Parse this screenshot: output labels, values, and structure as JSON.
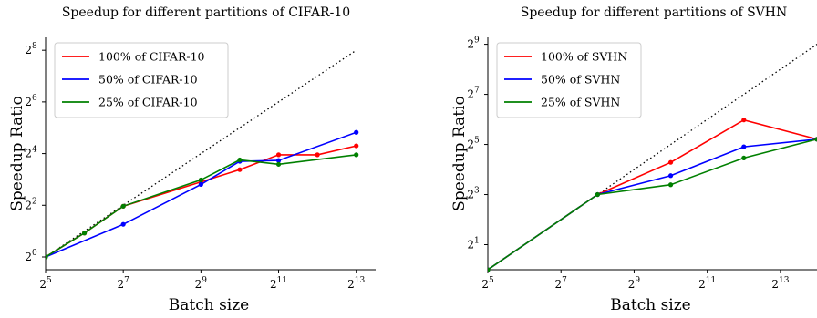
{
  "chart_data": [
    {
      "type": "line",
      "title": "Speedup for different partitions of CIFAR-10",
      "xlabel": "Batch size",
      "ylabel": "Speedup Ratio",
      "x_scale": "log2",
      "y_scale": "log2",
      "xlim": [
        32,
        11585
      ],
      "ylim": [
        0.71,
        362
      ],
      "x_ticks": [
        {
          "value": 32,
          "base": "2",
          "exp": "5"
        },
        {
          "value": 128,
          "base": "2",
          "exp": "7"
        },
        {
          "value": 512,
          "base": "2",
          "exp": "9"
        },
        {
          "value": 2048,
          "base": "2",
          "exp": "11"
        },
        {
          "value": 8192,
          "base": "2",
          "exp": "13"
        }
      ],
      "y_ticks": [
        {
          "value": 1,
          "base": "2",
          "exp": "0"
        },
        {
          "value": 4,
          "base": "2",
          "exp": "2"
        },
        {
          "value": 16,
          "base": "2",
          "exp": "4"
        },
        {
          "value": 64,
          "base": "2",
          "exp": "6"
        },
        {
          "value": 256,
          "base": "2",
          "exp": "8"
        }
      ],
      "legend_position": "top-left",
      "reference": {
        "style": "dotted",
        "color": "#000000",
        "x": [
          32,
          8192
        ],
        "y": [
          1,
          256
        ]
      },
      "series": [
        {
          "name": "100% of CIFAR-10",
          "color": "#ff0000",
          "x": [
            32,
            64,
            128,
            512,
            1024,
            2048,
            4096,
            8192
          ],
          "y": [
            1,
            1.9,
            3.9,
            7.5,
            10.4,
            15.5,
            15.5,
            19.7
          ]
        },
        {
          "name": "50% of CIFAR-10",
          "color": "#0000ff",
          "x": [
            32,
            128,
            512,
            1024,
            2048,
            8192
          ],
          "y": [
            1,
            2.4,
            7.0,
            13.0,
            13.3,
            28.3
          ]
        },
        {
          "name": "25% of CIFAR-10",
          "color": "#008000",
          "x": [
            32,
            64,
            128,
            512,
            1024,
            2048,
            8192
          ],
          "y": [
            1,
            1.9,
            3.9,
            7.9,
            13.5,
            12.0,
            15.5
          ]
        }
      ]
    },
    {
      "type": "line",
      "title": "Speedup for different partitions of SVHN",
      "xlabel": "Batch size",
      "ylabel": "Speedup Ratio",
      "x_scale": "log2",
      "y_scale": "log2",
      "xlim": [
        32,
        16384
      ],
      "ylim": [
        1,
        620
      ],
      "x_ticks": [
        {
          "value": 32,
          "base": "2",
          "exp": "5"
        },
        {
          "value": 128,
          "base": "2",
          "exp": "7"
        },
        {
          "value": 512,
          "base": "2",
          "exp": "9"
        },
        {
          "value": 2048,
          "base": "2",
          "exp": "11"
        },
        {
          "value": 8192,
          "base": "2",
          "exp": "13"
        }
      ],
      "y_ticks": [
        {
          "value": 2,
          "base": "2",
          "exp": "1"
        },
        {
          "value": 8,
          "base": "2",
          "exp": "3"
        },
        {
          "value": 32,
          "base": "2",
          "exp": "5"
        },
        {
          "value": 128,
          "base": "2",
          "exp": "7"
        },
        {
          "value": 512,
          "base": "2",
          "exp": "9"
        }
      ],
      "legend_position": "top-left",
      "reference": {
        "style": "dotted",
        "color": "#000000",
        "x": [
          32,
          16384
        ],
        "y": [
          1,
          512
        ]
      },
      "series": [
        {
          "name": "100% of SVHN",
          "color": "#ff0000",
          "x": [
            32,
            256,
            1024,
            4096,
            16384
          ],
          "y": [
            1,
            8,
            19.5,
            63,
            37
          ]
        },
        {
          "name": "50% of SVHN",
          "color": "#0000ff",
          "x": [
            32,
            256,
            1024,
            4096,
            16384
          ],
          "y": [
            1,
            8,
            13.5,
            30,
            37
          ]
        },
        {
          "name": "25% of SVHN",
          "color": "#008000",
          "x": [
            32,
            256,
            1024,
            4096,
            16384
          ],
          "y": [
            1,
            8,
            10.5,
            22,
            37
          ]
        }
      ]
    }
  ]
}
